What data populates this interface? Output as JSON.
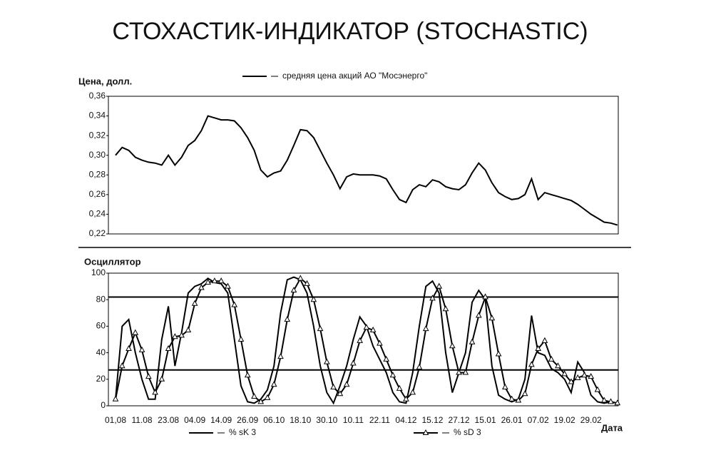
{
  "title": "СТОХАСТИК-ИНДИКАТОР (STOCHASTIC)",
  "chart_data": [
    {
      "type": "line",
      "ylabel": "Цена, долл.",
      "legend": "top",
      "ylim": [
        0.22,
        0.36
      ],
      "yticks": [
        {
          "value": 0.22,
          "label": "0,22"
        },
        {
          "value": 0.24,
          "label": "0,24"
        },
        {
          "value": 0.26,
          "label": "0,26"
        },
        {
          "value": 0.28,
          "label": "0,28"
        },
        {
          "value": 0.3,
          "label": "0,30"
        },
        {
          "value": 0.32,
          "label": "0,32"
        },
        {
          "value": 0.34,
          "label": "0,34"
        },
        {
          "value": 0.36,
          "label": "0,36"
        }
      ],
      "series": [
        {
          "name": "средняя цена акций АО \"Мосэнерго\"",
          "color": "#000000",
          "values": [
            0.3,
            0.308,
            0.305,
            0.298,
            0.295,
            0.293,
            0.292,
            0.29,
            0.3,
            0.29,
            0.298,
            0.31,
            0.315,
            0.325,
            0.34,
            0.338,
            0.336,
            0.336,
            0.335,
            0.328,
            0.318,
            0.305,
            0.285,
            0.278,
            0.282,
            0.284,
            0.295,
            0.31,
            0.326,
            0.325,
            0.318,
            0.305,
            0.292,
            0.28,
            0.266,
            0.278,
            0.281,
            0.28,
            0.28,
            0.28,
            0.279,
            0.276,
            0.265,
            0.255,
            0.252,
            0.265,
            0.27,
            0.268,
            0.275,
            0.273,
            0.268,
            0.266,
            0.265,
            0.27,
            0.282,
            0.292,
            0.285,
            0.272,
            0.262,
            0.258,
            0.255,
            0.256,
            0.26,
            0.276,
            0.255,
            0.262,
            0.26,
            0.258,
            0.256,
            0.254,
            0.25,
            0.245,
            0.24,
            0.236,
            0.232,
            0.231,
            0.229
          ]
        }
      ]
    },
    {
      "type": "line",
      "ylabel": "Осциллятор",
      "xlabel": "Дата",
      "legend": "bottom",
      "ylim": [
        0,
        100
      ],
      "yticks": [
        0,
        20,
        40,
        60,
        80,
        100
      ],
      "levels": [
        82,
        27
      ],
      "categories": [
        "01,08",
        null,
        null,
        null,
        "11.08",
        null,
        null,
        null,
        "23.08",
        null,
        null,
        null,
        "04.09",
        null,
        null,
        null,
        "14.09",
        null,
        null,
        null,
        "26.09",
        null,
        null,
        null,
        "06.10",
        null,
        null,
        null,
        "18.10",
        null,
        null,
        null,
        "30.10",
        null,
        null,
        null,
        "10.11",
        null,
        null,
        null,
        "22.11",
        null,
        null,
        null,
        "04.12",
        null,
        null,
        null,
        "15.12",
        null,
        null,
        null,
        "27.12",
        null,
        null,
        null,
        "15.01",
        null,
        null,
        null,
        "26.01",
        null,
        null,
        null,
        "07.02",
        null,
        null,
        null,
        "19.02",
        null,
        null,
        null,
        "29.02",
        null,
        null,
        null,
        null
      ],
      "series": [
        {
          "name": "% sK 3",
          "color": "#000000",
          "marker": "none",
          "values": [
            5,
            60,
            65,
            40,
            20,
            5,
            5,
            50,
            75,
            30,
            55,
            85,
            90,
            92,
            96,
            93,
            92,
            85,
            50,
            15,
            3,
            2,
            5,
            12,
            30,
            70,
            95,
            97,
            95,
            85,
            60,
            30,
            10,
            2,
            15,
            30,
            50,
            67,
            60,
            45,
            35,
            25,
            10,
            3,
            2,
            25,
            60,
            90,
            94,
            85,
            40,
            10,
            25,
            40,
            78,
            87,
            80,
            30,
            8,
            5,
            3,
            5,
            20,
            68,
            40,
            38,
            28,
            25,
            20,
            10,
            33,
            25,
            8,
            3,
            2,
            3,
            2
          ]
        },
        {
          "name": "% sD 3",
          "color": "#000000",
          "marker": "triangle",
          "values": [
            5,
            30,
            43,
            55,
            42,
            22,
            10,
            20,
            43,
            52,
            53,
            57,
            77,
            89,
            93,
            94,
            94,
            90,
            76,
            50,
            23,
            7,
            3,
            6,
            16,
            37,
            65,
            87,
            96,
            92,
            80,
            58,
            33,
            14,
            9,
            16,
            32,
            49,
            59,
            57,
            47,
            35,
            23,
            13,
            5,
            10,
            29,
            58,
            81,
            90,
            73,
            45,
            25,
            25,
            48,
            68,
            82,
            66,
            39,
            14,
            5,
            4,
            9,
            31,
            43,
            49,
            35,
            30,
            24,
            18,
            21,
            23,
            22,
            12,
            4,
            3,
            2
          ]
        }
      ]
    }
  ]
}
